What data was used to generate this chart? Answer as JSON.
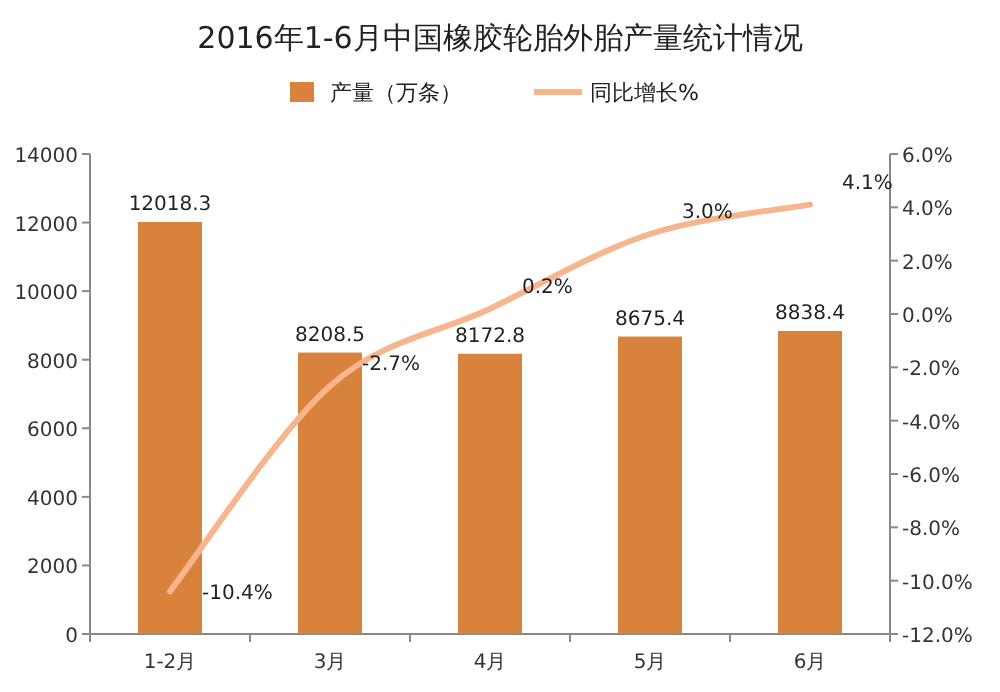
{
  "chart_data": {
    "type": "bar",
    "title": "2016年1-6月中国橡胶轮胎外胎产量统计情况",
    "categories": [
      "1-2月",
      "3月",
      "4月",
      "5月",
      "6月"
    ],
    "series": [
      {
        "name": "产量（万条）",
        "color": "#d9823b",
        "values": [
          12018.3,
          8208.5,
          8172.8,
          8675.4,
          8838.4
        ]
      },
      {
        "name": "同比增长%",
        "type": "line",
        "axis": "y2",
        "color": "#f6b58c",
        "values": [
          -10.4,
          -2.7,
          0.2,
          3.0,
          4.1
        ],
        "value_labels": [
          "-10.4%",
          "-2.7%",
          "0.2%",
          "3.0%",
          "4.1%"
        ]
      }
    ],
    "ylim": [
      0,
      14000
    ],
    "yticks": [
      0,
      2000,
      4000,
      6000,
      8000,
      10000,
      12000,
      14000
    ],
    "y2lim": [
      -12,
      6
    ],
    "y2ticks": [
      {
        "value": -12,
        "label": "-12.0%"
      },
      {
        "value": -10,
        "label": "-10.0%"
      },
      {
        "value": -8,
        "label": "-8.0%"
      },
      {
        "value": -6,
        "label": "-6.0%"
      },
      {
        "value": -4,
        "label": "-4.0%"
      },
      {
        "value": -2,
        "label": "-2.0%"
      },
      {
        "value": 0,
        "label": "0.0%"
      },
      {
        "value": 2,
        "label": "2.0%"
      },
      {
        "value": 4,
        "label": "4.0%"
      },
      {
        "value": 6,
        "label": "6.0%"
      }
    ],
    "legend": "top",
    "data_labels": true,
    "marker": "none",
    "line_style": "solid"
  }
}
